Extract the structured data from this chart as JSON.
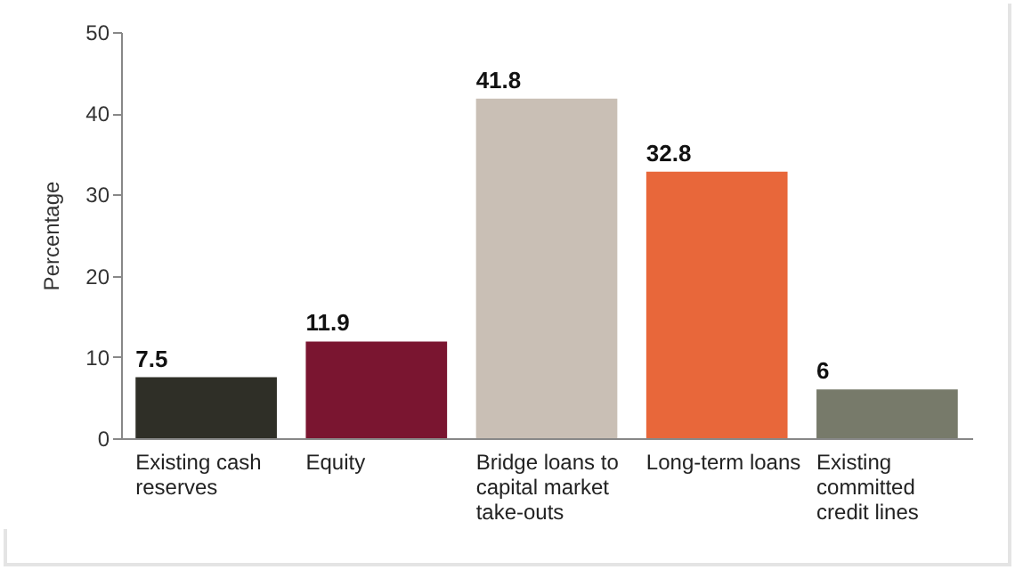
{
  "chart_data": {
    "type": "bar",
    "ylabel": "Percentage",
    "categories": [
      "Existing cash reserves",
      "Equity",
      "Bridge loans to capital market take-outs",
      "Long-term loans",
      "Existing committed credit lines"
    ],
    "values": [
      7.5,
      11.9,
      41.8,
      32.8,
      6
    ],
    "colors": [
      "#2f2f27",
      "#7a1530",
      "#c9bfb5",
      "#e8673a",
      "#777a6a"
    ],
    "ylim": [
      0,
      50
    ],
    "yticks": [
      0,
      10,
      20,
      30,
      40,
      50
    ],
    "data_labels": true,
    "grid": false,
    "legend": false
  }
}
